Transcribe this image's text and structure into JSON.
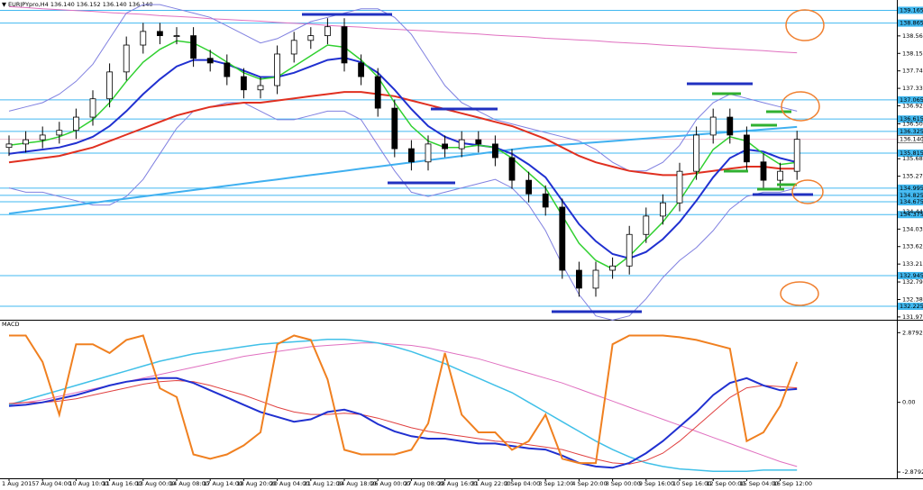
{
  "chart_data": [
    {
      "type": "candlestick",
      "title": "EURJPYpro,H4 136.140 136.152 136.140 136.140",
      "categories": [
        "1 Aug 2015",
        null,
        "7 Aug 04:00",
        null,
        "10 Aug 10:00",
        null,
        "11 Aug 16:00",
        null,
        "13 Aug 00:00",
        null,
        "14 Aug 08:00",
        null,
        "17 Aug 14:00",
        null,
        "18 Aug 20:00",
        null,
        "20 Aug 04:00",
        null,
        "21 Aug 12:00",
        null,
        "24 Aug 18:00",
        null,
        "26 Aug 00:00",
        null,
        "27 Aug 08:00",
        null,
        "28 Aug 16:00",
        null,
        "31 Aug 22:00",
        null,
        "2 Sep 04:00",
        null,
        "3 Sep 12:00",
        null,
        "4 Sep 20:00",
        null,
        "8 Sep 00:00",
        null,
        "9 Sep 16:00",
        null,
        "10 Sep 16:00",
        null,
        "12 Sep 00:00",
        null,
        "15 Sep 04:00",
        null,
        "16 Sep 12:00",
        null
      ],
      "open": [
        135.95,
        136.03,
        136.13,
        136.24,
        136.35,
        136.66,
        137.09,
        137.72,
        138.35,
        138.67,
        138.57,
        138.57,
        138.04,
        137.93,
        137.61,
        137.3,
        137.4,
        138.14,
        138.46,
        138.57,
        138.78,
        137.93,
        137.61,
        136.87,
        135.92,
        135.61,
        136.03,
        135.92,
        136.13,
        136.03,
        135.71,
        135.18,
        134.86,
        134.55,
        133.07,
        132.65,
        133.07,
        133.17,
        133.91,
        134.34,
        134.65,
        135.39,
        136.24,
        136.66,
        136.24,
        135.61,
        135.18,
        135.39
      ],
      "high": [
        136.23,
        136.33,
        136.44,
        136.55,
        136.86,
        137.29,
        137.92,
        138.55,
        138.87,
        138.87,
        138.77,
        138.77,
        138.24,
        138.13,
        137.81,
        137.6,
        138.34,
        138.66,
        138.77,
        138.98,
        138.98,
        138.13,
        137.81,
        137.07,
        136.12,
        136.23,
        136.23,
        136.33,
        136.33,
        136.23,
        135.91,
        135.38,
        135.06,
        134.75,
        133.27,
        133.27,
        133.37,
        134.11,
        134.54,
        134.85,
        135.59,
        136.44,
        136.86,
        136.86,
        136.44,
        135.81,
        135.59,
        136.34
      ],
      "low": [
        135.75,
        135.83,
        135.93,
        136.04,
        136.15,
        136.46,
        136.89,
        137.52,
        138.15,
        138.37,
        138.37,
        137.84,
        137.73,
        137.41,
        137.1,
        137.1,
        137.2,
        137.94,
        138.26,
        138.37,
        137.73,
        137.41,
        136.67,
        135.72,
        135.41,
        135.41,
        135.72,
        135.72,
        135.83,
        135.51,
        134.98,
        134.66,
        134.35,
        132.87,
        132.45,
        132.45,
        132.87,
        132.97,
        133.71,
        134.14,
        134.45,
        135.19,
        136.04,
        136.04,
        135.41,
        134.98,
        134.98,
        135.19
      ],
      "close": [
        136.03,
        136.13,
        136.24,
        136.35,
        136.66,
        137.09,
        137.72,
        138.35,
        138.67,
        138.57,
        138.57,
        138.04,
        137.93,
        137.61,
        137.3,
        137.4,
        138.14,
        138.46,
        138.57,
        138.78,
        137.93,
        137.61,
        136.87,
        135.92,
        135.61,
        136.03,
        135.92,
        136.13,
        136.03,
        135.71,
        135.18,
        134.86,
        134.55,
        133.07,
        132.65,
        133.07,
        133.17,
        133.91,
        134.34,
        134.65,
        135.39,
        136.24,
        136.66,
        136.24,
        135.61,
        135.18,
        135.39,
        136.14
      ],
      "series": [
        {
          "color": "#e070c0",
          "width": 1,
          "values": [
            139.25,
            139.23,
            139.2,
            139.18,
            139.16,
            139.14,
            139.11,
            139.09,
            139.07,
            139.04,
            139.02,
            139.0,
            138.97,
            138.95,
            138.93,
            138.91,
            138.88,
            138.86,
            138.84,
            138.81,
            138.79,
            138.77,
            138.74,
            138.72,
            138.7,
            138.68,
            138.65,
            138.63,
            138.61,
            138.58,
            138.56,
            138.54,
            138.51,
            138.49,
            138.47,
            138.45,
            138.42,
            138.4,
            138.38,
            138.35,
            138.33,
            138.31,
            138.28,
            138.26,
            138.24,
            138.22,
            138.19,
            138.17
          ]
        },
        {
          "color": "#8080e0",
          "width": 1,
          "values": [
            136.8,
            136.9,
            137.0,
            137.2,
            137.5,
            137.9,
            138.5,
            139.1,
            139.3,
            139.3,
            139.2,
            139.1,
            139.0,
            138.8,
            138.6,
            138.4,
            138.5,
            138.7,
            138.9,
            139.0,
            139.1,
            139.2,
            139.2,
            139.0,
            138.6,
            138.0,
            137.4,
            137.0,
            136.8,
            136.6,
            136.5,
            136.4,
            136.3,
            136.2,
            136.1,
            135.9,
            135.6,
            135.4,
            135.4,
            135.6,
            136.0,
            136.6,
            137.0,
            137.2,
            137.1,
            137.0,
            136.9,
            136.8
          ]
        },
        {
          "color": "#8080e0",
          "width": 1,
          "values": [
            135.0,
            134.9,
            134.9,
            134.8,
            134.7,
            134.6,
            134.6,
            134.8,
            135.2,
            135.8,
            136.4,
            136.8,
            136.9,
            137.0,
            137.0,
            136.8,
            136.6,
            136.6,
            136.7,
            136.8,
            136.8,
            136.6,
            136.0,
            135.4,
            134.9,
            134.8,
            134.9,
            135.0,
            135.1,
            135.2,
            135.0,
            134.6,
            134.0,
            133.2,
            132.5,
            132.0,
            131.9,
            132.0,
            132.4,
            132.9,
            133.3,
            133.6,
            134.0,
            134.5,
            134.8,
            134.9,
            134.9,
            135.0
          ]
        },
        {
          "color": "#40b0f0",
          "width": 2,
          "values": [
            134.4,
            134.45,
            134.5,
            134.55,
            134.6,
            134.65,
            134.7,
            134.75,
            134.8,
            134.85,
            134.9,
            134.95,
            135.0,
            135.05,
            135.1,
            135.15,
            135.2,
            135.25,
            135.3,
            135.35,
            135.4,
            135.45,
            135.5,
            135.55,
            135.6,
            135.65,
            135.7,
            135.75,
            135.8,
            135.85,
            135.9,
            135.95,
            135.98,
            136.01,
            136.04,
            136.07,
            136.1,
            136.13,
            136.16,
            136.19,
            136.22,
            136.25,
            136.28,
            136.31,
            136.34,
            136.37,
            136.4,
            136.43
          ]
        },
        {
          "color": "#e03020",
          "width": 2,
          "values": [
            135.6,
            135.65,
            135.7,
            135.75,
            135.85,
            135.95,
            136.1,
            136.25,
            136.4,
            136.55,
            136.7,
            136.8,
            136.9,
            136.95,
            137.0,
            137.0,
            137.05,
            137.1,
            137.15,
            137.2,
            137.25,
            137.25,
            137.2,
            137.15,
            137.05,
            136.95,
            136.85,
            136.75,
            136.65,
            136.55,
            136.45,
            136.3,
            136.15,
            135.95,
            135.75,
            135.6,
            135.5,
            135.4,
            135.35,
            135.3,
            135.3,
            135.35,
            135.4,
            135.45,
            135.5,
            135.5,
            135.45,
            135.45
          ]
        },
        {
          "color": "#2030d0",
          "width": 2,
          "values": [
            135.8,
            135.85,
            135.9,
            135.95,
            136.05,
            136.2,
            136.45,
            136.8,
            137.2,
            137.55,
            137.85,
            138.0,
            138.0,
            137.9,
            137.75,
            137.6,
            137.6,
            137.7,
            137.85,
            138.0,
            138.05,
            137.95,
            137.7,
            137.3,
            136.85,
            136.45,
            136.2,
            136.05,
            136.0,
            135.95,
            135.8,
            135.55,
            135.25,
            134.7,
            134.15,
            133.75,
            133.45,
            133.35,
            133.5,
            133.8,
            134.2,
            134.7,
            135.25,
            135.7,
            135.9,
            135.85,
            135.7,
            135.6
          ]
        },
        {
          "color": "#30d030",
          "width": 1.5,
          "values": [
            136.0,
            136.05,
            136.1,
            136.2,
            136.35,
            136.6,
            137.0,
            137.5,
            137.95,
            138.25,
            138.45,
            138.4,
            138.2,
            137.95,
            137.7,
            137.55,
            137.6,
            137.85,
            138.1,
            138.35,
            138.3,
            138.0,
            137.6,
            137.0,
            136.45,
            136.1,
            135.95,
            135.95,
            136.0,
            135.95,
            135.7,
            135.35,
            135.0,
            134.35,
            133.7,
            133.3,
            133.1,
            133.4,
            133.8,
            134.2,
            134.7,
            135.3,
            135.9,
            136.2,
            136.1,
            135.8,
            135.55,
            135.6
          ]
        }
      ],
      "levels": [
        139.165,
        138.865,
        137.065,
        136.615,
        136.325,
        135.815,
        134.995,
        134.825,
        134.675,
        134.375,
        132.945,
        132.225
      ],
      "level_color": "#40b8f0",
      "price": {
        "value": 136.14,
        "label": "136.140"
      },
      "ylim": [
        131.93,
        139.28
      ],
      "yticks": [
        138.565,
        138.155,
        137.745,
        137.335,
        136.925,
        136.505,
        135.685,
        135.275,
        134.445,
        134.035,
        133.625,
        133.215,
        132.795,
        132.385,
        131.975
      ]
    },
    {
      "type": "line",
      "title": "MACD",
      "series": [
        {
          "color": "#e070c0",
          "width": 1,
          "values": [
            -0.1,
            0.0,
            0.1,
            0.25,
            0.4,
            0.55,
            0.7,
            0.85,
            1.0,
            1.15,
            1.3,
            1.45,
            1.6,
            1.75,
            1.9,
            2.0,
            2.1,
            2.2,
            2.3,
            2.35,
            2.4,
            2.45,
            2.45,
            2.4,
            2.35,
            2.25,
            2.1,
            1.95,
            1.8,
            1.6,
            1.4,
            1.2,
            1.0,
            0.8,
            0.55,
            0.3,
            0.05,
            -0.2,
            -0.45,
            -0.7,
            -0.95,
            -1.2,
            -1.45,
            -1.7,
            -1.95,
            -2.2,
            -2.45,
            -2.65
          ]
        },
        {
          "color": "#40c0e8",
          "width": 1.5,
          "values": [
            -0.1,
            0.1,
            0.3,
            0.5,
            0.7,
            0.9,
            1.1,
            1.3,
            1.5,
            1.7,
            1.85,
            2.0,
            2.1,
            2.2,
            2.3,
            2.4,
            2.45,
            2.5,
            2.55,
            2.6,
            2.6,
            2.55,
            2.45,
            2.3,
            2.1,
            1.85,
            1.6,
            1.3,
            1.0,
            0.7,
            0.4,
            0.0,
            -0.4,
            -0.8,
            -1.2,
            -1.6,
            -1.95,
            -2.25,
            -2.5,
            -2.65,
            -2.75,
            -2.8,
            -2.85,
            -2.85,
            -2.85,
            -2.8,
            -2.8,
            -2.8
          ]
        },
        {
          "color": "#e04040",
          "width": 1,
          "values": [
            -0.05,
            0.0,
            0.0,
            0.05,
            0.15,
            0.3,
            0.45,
            0.6,
            0.75,
            0.85,
            0.9,
            0.85,
            0.7,
            0.5,
            0.3,
            0.05,
            -0.2,
            -0.4,
            -0.5,
            -0.5,
            -0.45,
            -0.5,
            -0.65,
            -0.85,
            -1.05,
            -1.2,
            -1.3,
            -1.4,
            -1.5,
            -1.6,
            -1.65,
            -1.75,
            -1.85,
            -1.95,
            -2.15,
            -2.35,
            -2.5,
            -2.55,
            -2.4,
            -2.1,
            -1.6,
            -1.0,
            -0.4,
            0.2,
            0.6,
            0.7,
            0.65,
            0.6
          ]
        },
        {
          "color": "#2030d0",
          "width": 2,
          "values": [
            -0.15,
            -0.1,
            0.0,
            0.15,
            0.3,
            0.5,
            0.7,
            0.85,
            0.95,
            1.0,
            1.0,
            0.8,
            0.5,
            0.2,
            -0.1,
            -0.4,
            -0.6,
            -0.8,
            -0.7,
            -0.4,
            -0.3,
            -0.5,
            -0.9,
            -1.2,
            -1.4,
            -1.5,
            -1.5,
            -1.6,
            -1.7,
            -1.7,
            -1.8,
            -1.9,
            -1.95,
            -2.2,
            -2.5,
            -2.65,
            -2.7,
            -2.5,
            -2.1,
            -1.6,
            -1.0,
            -0.4,
            0.3,
            0.8,
            1.0,
            0.7,
            0.5,
            0.55
          ]
        },
        {
          "color": "#f08020",
          "width": 2,
          "values": [
            2.76,
            2.76,
            1.67,
            -0.51,
            2.4,
            2.4,
            2.04,
            2.58,
            2.76,
            0.58,
            0.22,
            -2.15,
            -2.33,
            -2.15,
            -1.78,
            -1.24,
            2.4,
            2.76,
            2.58,
            0.95,
            -1.96,
            -2.15,
            -2.15,
            -2.15,
            -1.96,
            -0.87,
            2.04,
            -0.51,
            -1.24,
            -1.24,
            -1.96,
            -1.6,
            -0.51,
            -2.33,
            -2.51,
            -2.51,
            2.4,
            2.76,
            2.76,
            2.76,
            2.69,
            2.58,
            2.4,
            2.22,
            -1.6,
            -1.24,
            -0.15,
            1.67
          ]
        }
      ],
      "ylim": [
        -3.1,
        3.3
      ],
      "yticks": [
        2.8792,
        {
          "value": 0,
          "label": "0.00"
        },
        -2.8792
      ]
    }
  ]
}
